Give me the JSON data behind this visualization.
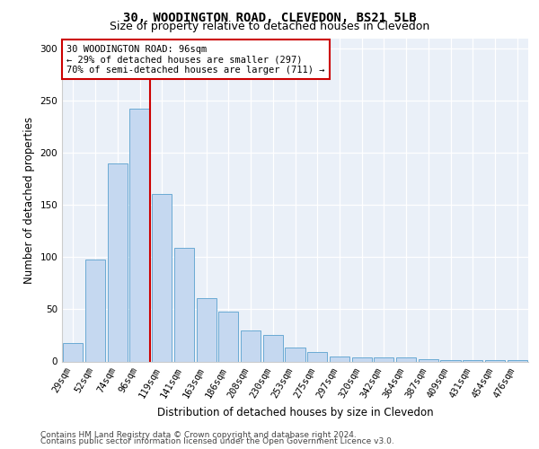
{
  "title_line1": "30, WOODINGTON ROAD, CLEVEDON, BS21 5LB",
  "title_line2": "Size of property relative to detached houses in Clevedon",
  "xlabel": "Distribution of detached houses by size in Clevedon",
  "ylabel": "Number of detached properties",
  "categories": [
    "29sqm",
    "52sqm",
    "74sqm",
    "96sqm",
    "119sqm",
    "141sqm",
    "163sqm",
    "186sqm",
    "208sqm",
    "230sqm",
    "253sqm",
    "275sqm",
    "297sqm",
    "320sqm",
    "342sqm",
    "364sqm",
    "387sqm",
    "409sqm",
    "431sqm",
    "454sqm",
    "476sqm"
  ],
  "values": [
    18,
    98,
    190,
    242,
    161,
    109,
    61,
    48,
    30,
    25,
    13,
    9,
    5,
    4,
    4,
    4,
    2,
    1,
    1,
    1,
    1
  ],
  "bar_color": "#c5d8f0",
  "bar_edge_color": "#6aaad4",
  "vline_x_index": 3,
  "vline_color": "#cc0000",
  "annotation_text": "30 WOODINGTON ROAD: 96sqm\n← 29% of detached houses are smaller (297)\n70% of semi-detached houses are larger (711) →",
  "annotation_box_color": "#ffffff",
  "annotation_box_edge": "#cc0000",
  "ylim": [
    0,
    310
  ],
  "yticks": [
    0,
    50,
    100,
    150,
    200,
    250,
    300
  ],
  "footer_line1": "Contains HM Land Registry data © Crown copyright and database right 2024.",
  "footer_line2": "Contains public sector information licensed under the Open Government Licence v3.0.",
  "plot_bg_color": "#eaf0f8",
  "title1_fontsize": 10,
  "title2_fontsize": 9,
  "xlabel_fontsize": 8.5,
  "ylabel_fontsize": 8.5,
  "tick_fontsize": 7.5,
  "annotation_fontsize": 7.5,
  "footer_fontsize": 6.5
}
